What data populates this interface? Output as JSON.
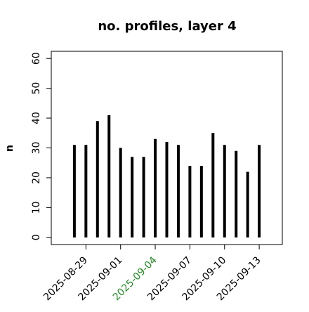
{
  "chart_data": {
    "type": "bar",
    "title": "no. profiles, layer 4",
    "y_label": "n",
    "x": [
      "2025-08-28",
      "2025-08-29",
      "2025-08-30",
      "2025-08-31",
      "2025-09-01",
      "2025-09-02",
      "2025-09-03",
      "2025-09-04",
      "2025-09-05",
      "2025-09-06",
      "2025-09-07",
      "2025-09-08",
      "2025-09-09",
      "2025-09-10",
      "2025-09-11",
      "2025-09-12",
      "2025-09-13"
    ],
    "values": [
      31,
      31,
      39,
      41,
      30,
      27,
      27,
      33,
      32,
      31,
      24,
      24,
      35,
      31,
      29,
      22,
      31
    ],
    "color": "#000000",
    "xlim": [
      "2025-08-26",
      "2025-09-15"
    ],
    "xticks": [
      "2025-08-29",
      "2025-09-01",
      "2025-09-04",
      "2025-09-07",
      "2025-09-10",
      "2025-09-13"
    ],
    "xtick_colors": [
      "#000000",
      "#000000",
      "#228b22",
      "#000000",
      "#000000",
      "#000000"
    ],
    "ylim": [
      -2.4,
      62.4
    ],
    "yticks": [
      0,
      10,
      20,
      30,
      40,
      50,
      60
    ],
    "grid": false
  }
}
